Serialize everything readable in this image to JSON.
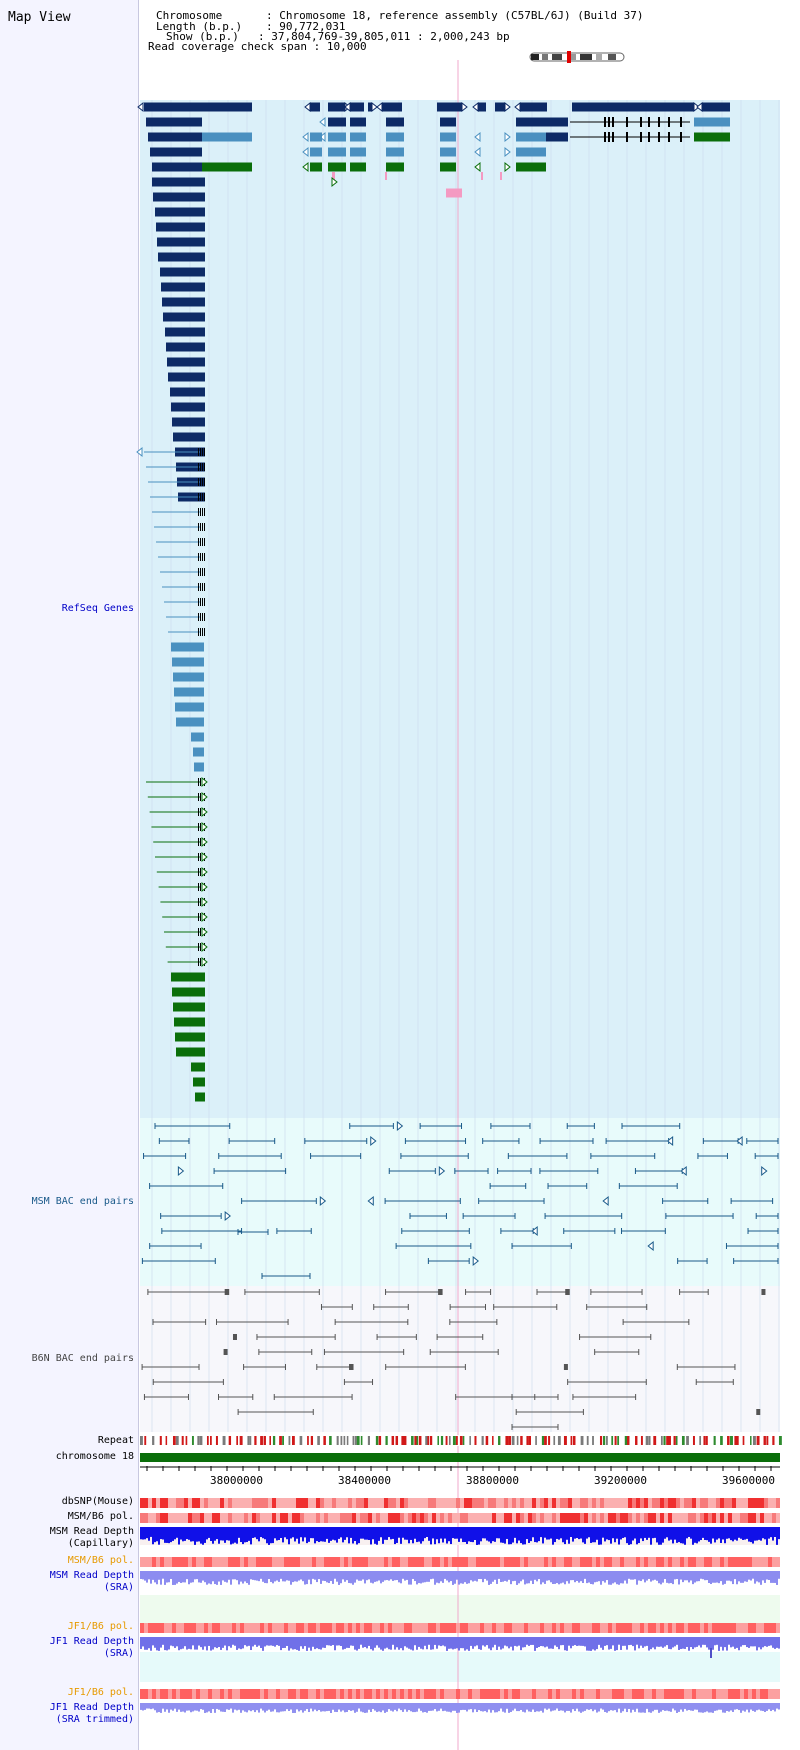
{
  "map_title": "Map View",
  "info": {
    "chromosome_label": "Chromosome",
    "chromosome_value": "Chromosome 18, reference assembly (C57BL/6J) (Build 37)",
    "length_label": "Length (b.p.)",
    "length_value": "90,772,031",
    "show_label": "Show (b.p.)",
    "show_value": "37,804,769-39,805,011 : 2,000,243 bp",
    "coverage_label": "Read coverage check span",
    "coverage_value": "10,000"
  },
  "tracks": {
    "refseq": "RefSeq Genes",
    "msm_bac": "MSM BAC end pairs",
    "b6n_bac": "B6N BAC end pairs",
    "repeat": "Repeat",
    "chromosome": "chromosome 18",
    "dbsnp": "dbSNP(Mouse)",
    "msm_b6_pol": "MSM/B6 pol.",
    "msm_depth_cap_1": "MSM Read Depth",
    "msm_depth_cap_2": "(Capillary)",
    "msm_b6_pol_2": "MSM/B6 pol.",
    "msm_depth_sra_1": "MSM Read Depth",
    "msm_depth_sra_2": "(SRA)",
    "jf1_b6_pol": "JF1/B6 pol.",
    "jf1_depth_sra_1": "JF1 Read Depth",
    "jf1_depth_sra_2": "(SRA)",
    "jf1_b6_pol_2": "JF1/B6 pol.",
    "jf1_depth_trim_1": "JF1 Read Depth",
    "jf1_depth_trim_2": "(SRA trimmed)"
  },
  "axis": {
    "ticks": [
      "38000000",
      "38400000",
      "38800000",
      "39200000",
      "39600000"
    ]
  },
  "colors": {
    "refseq_bg": "#dbf0f9",
    "bac_bg": "#e8fbfb",
    "gene_navy": "#0d2a66",
    "gene_teal": "#4a90c0",
    "gene_green": "#0a6e0a",
    "pink": "#f49ac2",
    "chromosome_bar": "#0a6e0a",
    "msm_label": "#1a5a8a",
    "b6n_label": "#444444",
    "orange_label": "#e69a00",
    "blue_label": "#0000c8"
  }
}
